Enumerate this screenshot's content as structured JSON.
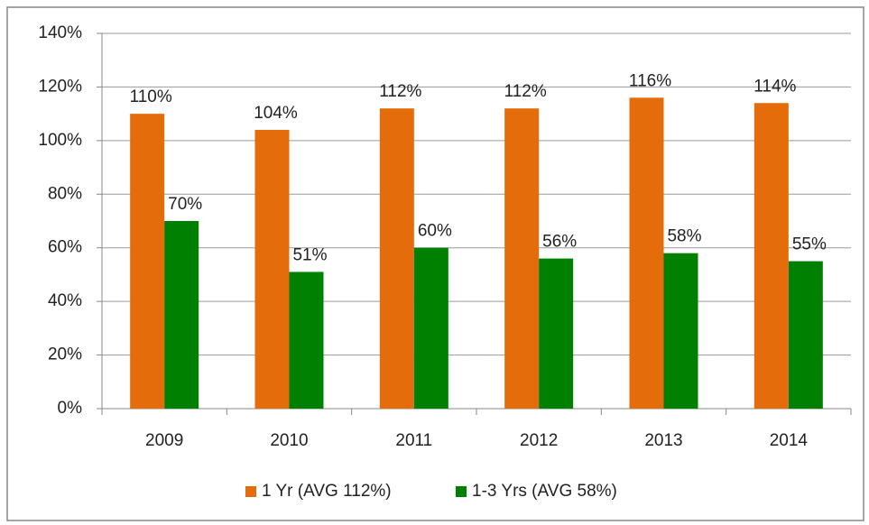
{
  "chart_data": {
    "type": "bar",
    "categories": [
      "2009",
      "2010",
      "2011",
      "2012",
      "2013",
      "2014"
    ],
    "series": [
      {
        "name": "1 Yr (AVG 112%)",
        "color": "#e46c0a",
        "values": [
          110,
          104,
          112,
          112,
          116,
          114
        ],
        "value_labels": [
          "110%",
          "104%",
          "112%",
          "112%",
          "116%",
          "114%"
        ]
      },
      {
        "name": "1-3 Yrs (AVG 58%)",
        "color": "#008000",
        "values": [
          70,
          51,
          60,
          56,
          58,
          55
        ],
        "value_labels": [
          "70%",
          "51%",
          "60%",
          "56%",
          "58%",
          "55%"
        ]
      }
    ],
    "ylim": [
      0,
      140
    ],
    "yticks": [
      {
        "value": 0,
        "label": "0%"
      },
      {
        "value": 20,
        "label": "20%"
      },
      {
        "value": 40,
        "label": "40%"
      },
      {
        "value": 60,
        "label": "60%"
      },
      {
        "value": 80,
        "label": "80%"
      },
      {
        "value": 100,
        "label": "100%"
      },
      {
        "value": 120,
        "label": "120%"
      },
      {
        "value": 140,
        "label": "140%"
      }
    ],
    "grid": true,
    "legend": "bottom"
  }
}
